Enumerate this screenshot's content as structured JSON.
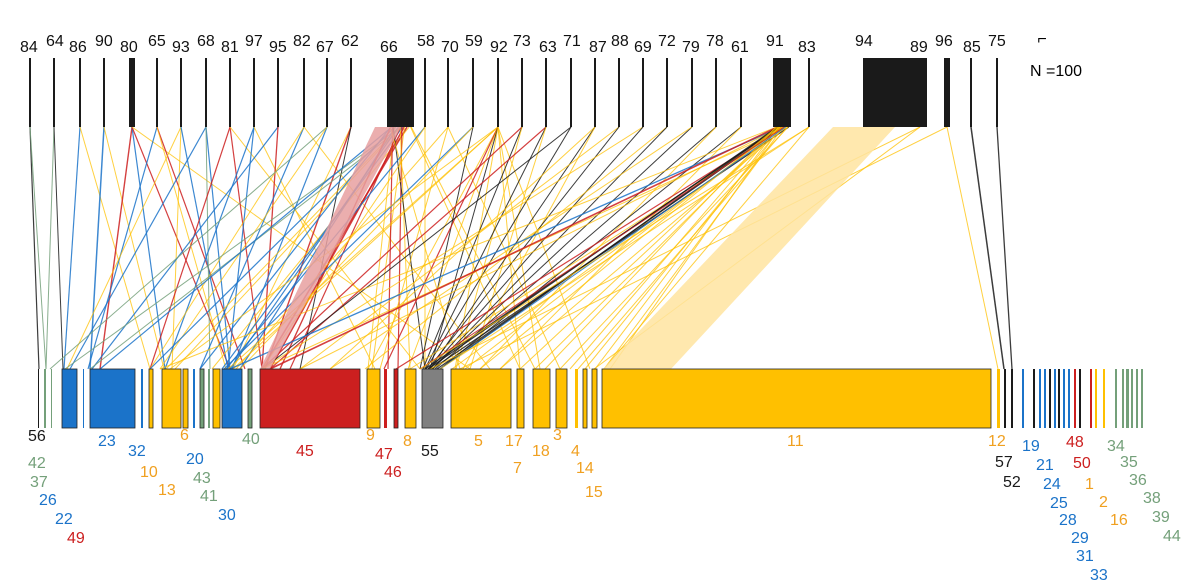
{
  "scale": {
    "marker": "⌐",
    "label": "N =100"
  },
  "palette": {
    "black": "#1a1a1a",
    "blue": "#1b73c9",
    "red": "#cc1f1f",
    "orange": "#ffc000",
    "orange_text": "#f0a020",
    "green": "#74a07a",
    "gray": "#808080",
    "pink_band": "#e8a0a0",
    "yellow_band": "#ffe4a0"
  },
  "top_labels": [
    "84",
    "64",
    "86",
    "90",
    "80",
    "65",
    "93",
    "68",
    "81",
    "97",
    "95",
    "82",
    "67",
    "62",
    "66",
    "58",
    "70",
    "59",
    "92",
    "73",
    "63",
    "71",
    "87",
    "88",
    "69",
    "72",
    "79",
    "78",
    "61",
    "91",
    "83",
    "94",
    "89",
    "96",
    "85",
    "75"
  ],
  "bottom_labels": [
    {
      "text": "56",
      "color": "black"
    },
    {
      "text": "42",
      "color": "green"
    },
    {
      "text": "37",
      "color": "green"
    },
    {
      "text": "26",
      "color": "blue"
    },
    {
      "text": "22",
      "color": "blue"
    },
    {
      "text": "49",
      "color": "red"
    },
    {
      "text": "23",
      "color": "blue"
    },
    {
      "text": "32",
      "color": "blue"
    },
    {
      "text": "10",
      "color": "orange"
    },
    {
      "text": "13",
      "color": "orange"
    },
    {
      "text": "6",
      "color": "orange"
    },
    {
      "text": "20",
      "color": "blue"
    },
    {
      "text": "43",
      "color": "green"
    },
    {
      "text": "41",
      "color": "green"
    },
    {
      "text": "30",
      "color": "blue"
    },
    {
      "text": "40",
      "color": "green"
    },
    {
      "text": "45",
      "color": "red"
    },
    {
      "text": "9",
      "color": "orange"
    },
    {
      "text": "47",
      "color": "red"
    },
    {
      "text": "46",
      "color": "red"
    },
    {
      "text": "8",
      "color": "orange"
    },
    {
      "text": "55",
      "color": "black"
    },
    {
      "text": "5",
      "color": "orange"
    },
    {
      "text": "17",
      "color": "orange"
    },
    {
      "text": "7",
      "color": "orange"
    },
    {
      "text": "18",
      "color": "orange"
    },
    {
      "text": "3",
      "color": "orange"
    },
    {
      "text": "4",
      "color": "orange"
    },
    {
      "text": "14",
      "color": "orange"
    },
    {
      "text": "15",
      "color": "orange"
    },
    {
      "text": "11",
      "color": "orange"
    },
    {
      "text": "12",
      "color": "orange"
    },
    {
      "text": "57",
      "color": "black"
    },
    {
      "text": "52",
      "color": "black"
    },
    {
      "text": "19",
      "color": "blue"
    },
    {
      "text": "21",
      "color": "blue"
    },
    {
      "text": "24",
      "color": "blue"
    },
    {
      "text": "25",
      "color": "blue"
    },
    {
      "text": "28",
      "color": "blue"
    },
    {
      "text": "29",
      "color": "blue"
    },
    {
      "text": "31",
      "color": "blue"
    },
    {
      "text": "33",
      "color": "blue"
    },
    {
      "text": "48",
      "color": "red"
    },
    {
      "text": "50",
      "color": "red"
    },
    {
      "text": "1",
      "color": "orange"
    },
    {
      "text": "2",
      "color": "orange"
    },
    {
      "text": "16",
      "color": "orange"
    },
    {
      "text": "34",
      "color": "green"
    },
    {
      "text": "35",
      "color": "green"
    },
    {
      "text": "36",
      "color": "green"
    },
    {
      "text": "38",
      "color": "green"
    },
    {
      "text": "39",
      "color": "green"
    },
    {
      "text": "44",
      "color": "green"
    }
  ]
}
